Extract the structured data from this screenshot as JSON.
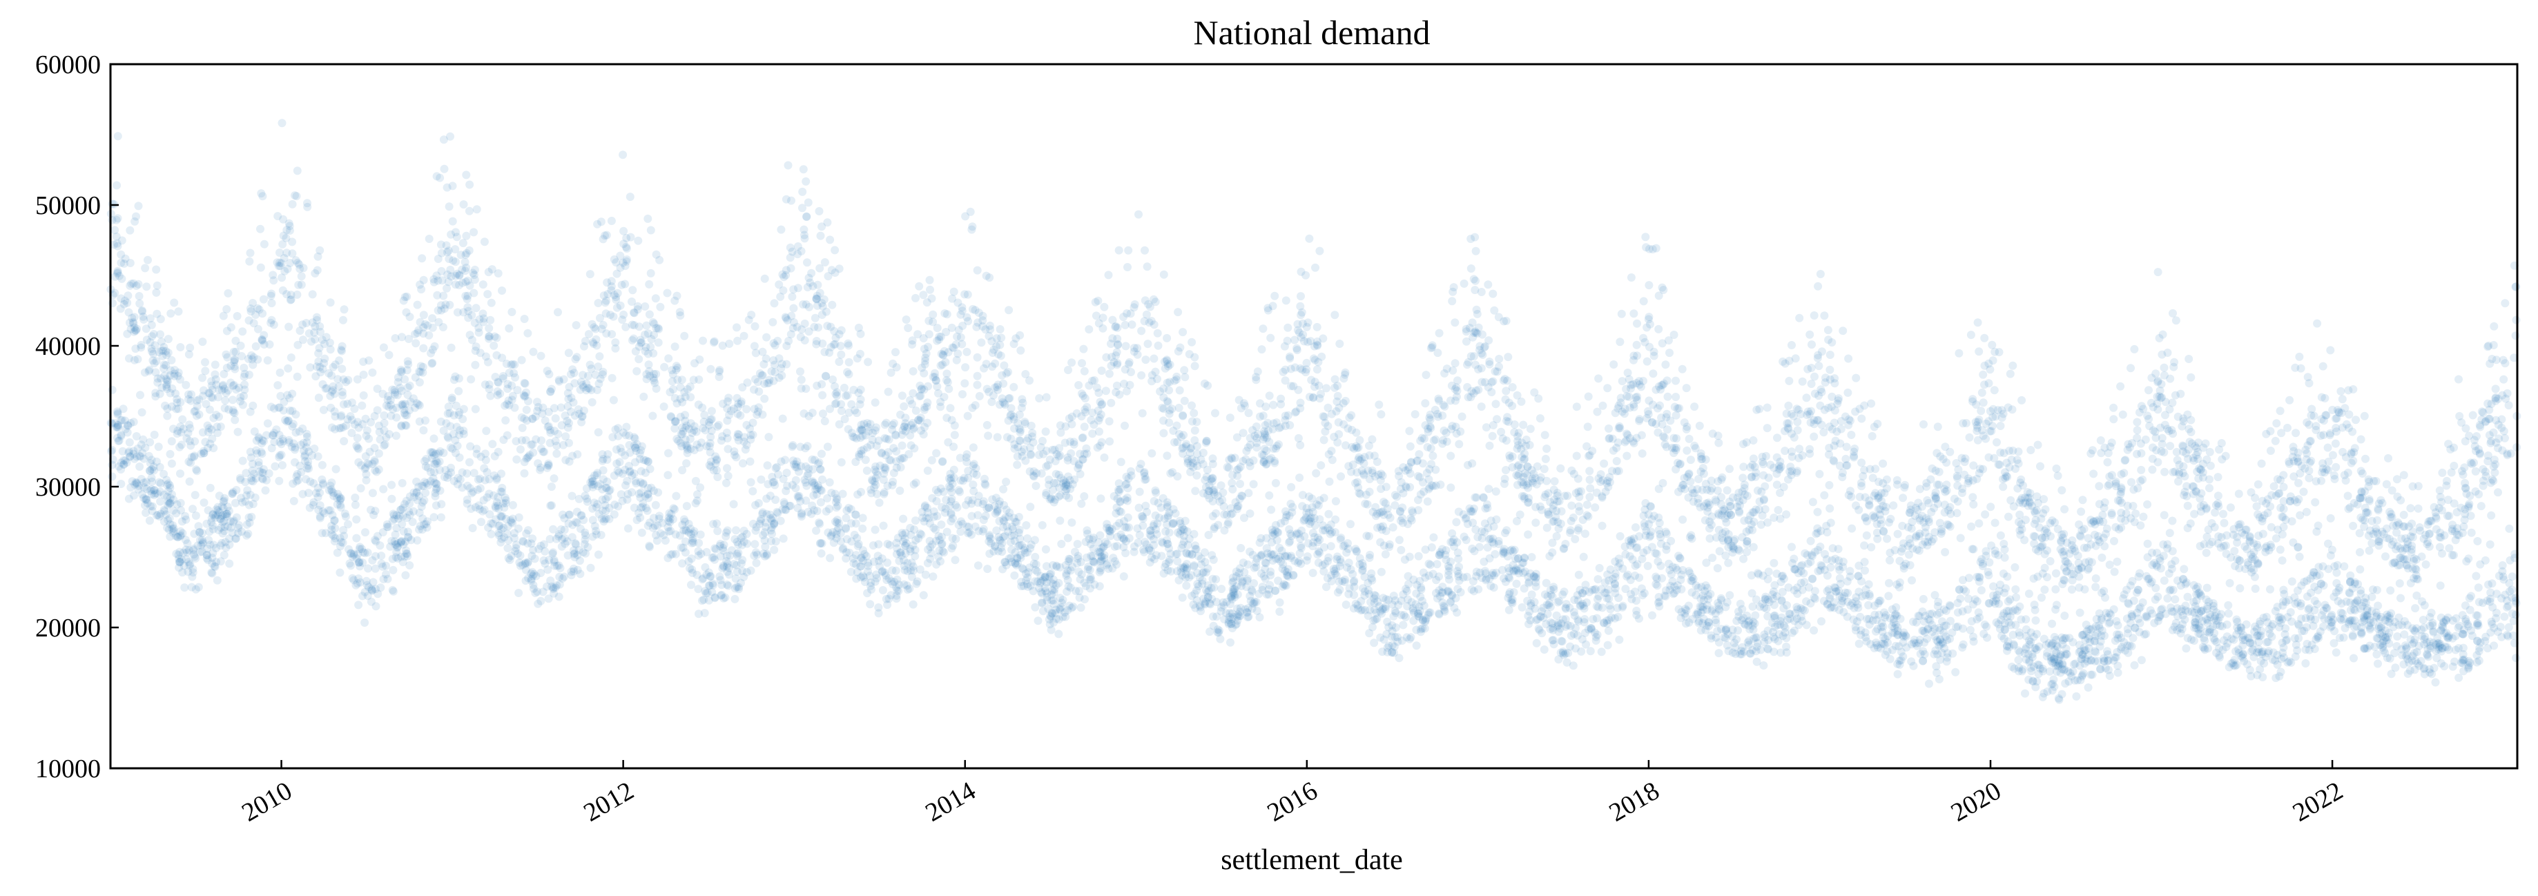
{
  "chart_data": {
    "type": "scatter",
    "title": "National demand",
    "xlabel": "settlement_date",
    "ylabel": "",
    "xlim": [
      "2009-01-01",
      "2023-01-31"
    ],
    "ylim": [
      10000,
      60000
    ],
    "yticks": [
      10000,
      20000,
      30000,
      40000,
      50000,
      60000
    ],
    "xticks": [
      "2010",
      "2012",
      "2014",
      "2016",
      "2018",
      "2020",
      "2022"
    ],
    "point_color": "#1f77b4",
    "point_alpha": 0.12,
    "legend": "none",
    "grid": false,
    "series": [
      {
        "x": [
          "2009-01",
          "2009-04",
          "2009-07",
          "2009-10",
          "2010-01",
          "2010-04",
          "2010-07",
          "2010-10",
          "2011-01",
          "2011-04",
          "2011-07",
          "2011-10",
          "2012-01",
          "2012-04",
          "2012-07",
          "2012-10",
          "2013-01",
          "2013-04",
          "2013-07",
          "2013-10",
          "2014-01",
          "2014-04",
          "2014-07",
          "2014-10",
          "2015-01",
          "2015-04",
          "2015-07",
          "2015-10",
          "2016-01",
          "2016-04",
          "2016-07",
          "2016-10",
          "2017-01",
          "2017-04",
          "2017-07",
          "2017-10",
          "2018-01",
          "2018-04",
          "2018-07",
          "2018-10",
          "2019-01",
          "2019-04",
          "2019-07",
          "2019-10",
          "2020-01",
          "2020-04",
          "2020-07",
          "2020-10",
          "2021-01",
          "2021-04",
          "2021-07",
          "2021-10",
          "2022-01",
          "2022-04",
          "2022-07",
          "2022-10",
          "2023-01"
        ],
        "min": [
          29000,
          27000,
          21000,
          25000,
          30000,
          26000,
          20000,
          24000,
          28000,
          25000,
          20000,
          23000,
          27000,
          24000,
          20000,
          22000,
          26000,
          24000,
          20000,
          22000,
          25000,
          23000,
          19000,
          21000,
          24000,
          22000,
          18000,
          20000,
          23000,
          21000,
          17000,
          19000,
          22000,
          20000,
          17000,
          18000,
          21000,
          19000,
          17000,
          17000,
          20000,
          18000,
          16000,
          16000,
          19000,
          14000,
          15000,
          16000,
          19000,
          17000,
          16000,
          16000,
          18000,
          17000,
          16000,
          15000,
          17000
        ],
        "max": [
          58000,
          46000,
          41000,
          45000,
          57000,
          46000,
          40000,
          44000,
          58000,
          46000,
          41000,
          45000,
          55000,
          45000,
          40000,
          43000,
          55000,
          47000,
          38000,
          45000,
          52000,
          43000,
          37000,
          43000,
          52000,
          43000,
          35000,
          42000,
          50000,
          40000,
          34000,
          41000,
          50000,
          39000,
          34000,
          40000,
          49000,
          38000,
          33000,
          39000,
          47000,
          37000,
          32000,
          38000,
          45000,
          34000,
          30000,
          37000,
          46000,
          36000,
          31000,
          38000,
          45000,
          34000,
          30000,
          38000,
          46000
        ]
      }
    ]
  }
}
